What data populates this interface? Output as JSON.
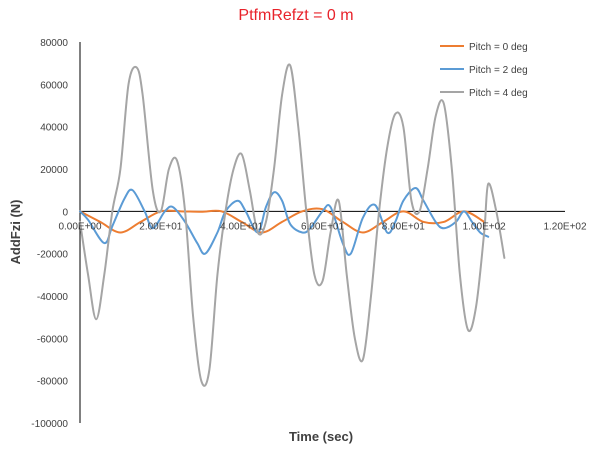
{
  "colors": {
    "title": "#e8222a",
    "axis": "#000000",
    "text": "#404040",
    "series": [
      "#ed7d31",
      "#5b9bd5",
      "#a5a5a5"
    ]
  },
  "chart_data": {
    "type": "line",
    "title": "PtfmRefzt = 0 m",
    "xlabel": "Time (sec)",
    "ylabel": "AddFzi  (N)",
    "xlim": [
      0,
      120
    ],
    "ylim": [
      -100000,
      80000
    ],
    "x_ticks": [
      0,
      20,
      40,
      60,
      80,
      100,
      120
    ],
    "x_tick_labels": [
      "0.00E+00",
      "2.00E+01",
      "4.00E+01",
      "6.00E+01",
      "8.00E+01",
      "1.00E+02",
      "1.20E+02"
    ],
    "y_ticks": [
      80000,
      60000,
      40000,
      20000,
      0,
      -20000,
      -40000,
      -60000,
      -80000,
      -100000
    ],
    "y_tick_labels": [
      "80000",
      "60000",
      "40000",
      "20000",
      "0",
      "-20000",
      "-40000",
      "-60000",
      "-80000",
      "-100000"
    ],
    "grid": false,
    "legend_position": "top-right",
    "series": [
      {
        "name": "Pitch = 0 deg",
        "x": [
          0,
          5,
          10,
          15,
          20,
          25,
          30,
          35,
          40,
          45,
          50,
          55,
          60,
          65,
          70,
          75,
          80,
          85,
          90,
          95,
          100
        ],
        "y": [
          0,
          -5000,
          -10000,
          -5000,
          0,
          0,
          -200,
          0,
          -5000,
          -10000,
          -5000,
          0,
          1000,
          -5000,
          -10000,
          -5000,
          0,
          -5000,
          -5000,
          0,
          -5000
        ]
      },
      {
        "name": "Pitch = 2 deg",
        "x": [
          0,
          2,
          6,
          8,
          11,
          13,
          16,
          18,
          21,
          23,
          26,
          29,
          31,
          34,
          36,
          39,
          41,
          44,
          46,
          48,
          50,
          52,
          55,
          57,
          60,
          62,
          65,
          67,
          70,
          73,
          76,
          78,
          80,
          83,
          85,
          88,
          90,
          93,
          95,
          97,
          99,
          101
        ],
        "y": [
          0,
          -4000,
          -15000,
          -7000,
          6000,
          10000,
          0,
          -8000,
          0,
          2000,
          -5000,
          -15000,
          -20000,
          -10000,
          0,
          5000,
          0,
          -10000,
          2000,
          9000,
          5000,
          -6000,
          -10000,
          -8000,
          0,
          2000,
          -15000,
          -20000,
          -3000,
          3000,
          -10000,
          -5000,
          5000,
          11000,
          5000,
          -5000,
          -8000,
          -5000,
          0,
          -5000,
          -10000,
          -12000
        ]
      },
      {
        "name": "Pitch = 4 deg",
        "x": [
          0,
          2,
          4,
          6,
          8,
          10,
          12,
          14,
          15.5,
          18,
          20,
          22,
          24,
          26,
          28,
          30,
          32,
          34,
          36,
          38,
          40,
          42,
          44,
          46,
          48,
          50,
          52,
          54,
          56,
          58,
          60,
          62,
          64,
          66,
          68,
          70,
          72,
          74,
          76,
          78,
          80,
          82,
          84,
          86,
          88,
          90,
          92,
          94,
          96,
          98,
          100
        ],
        "y": [
          -5000,
          -30000,
          -51000,
          -30000,
          0,
          20000,
          60000,
          68000,
          55000,
          10000,
          0,
          20000,
          24000,
          0,
          -50000,
          -80000,
          -75000,
          -30000,
          0,
          20000,
          27000,
          10000,
          -10000,
          -5000,
          20000,
          55000,
          69000,
          40000,
          0,
          -30000,
          -33000,
          -10000,
          5000,
          -30000,
          -60000,
          -70000,
          -40000,
          0,
          30000,
          46000,
          40000,
          5000,
          0,
          20000,
          45000,
          51000,
          20000,
          -30000,
          -56000,
          -45000,
          -10000
        ]
      }
    ],
    "series_extra": [
      {
        "x": [
          101,
          103,
          105
        ],
        "y": [
          13000,
          0,
          -22000
        ]
      }
    ]
  }
}
